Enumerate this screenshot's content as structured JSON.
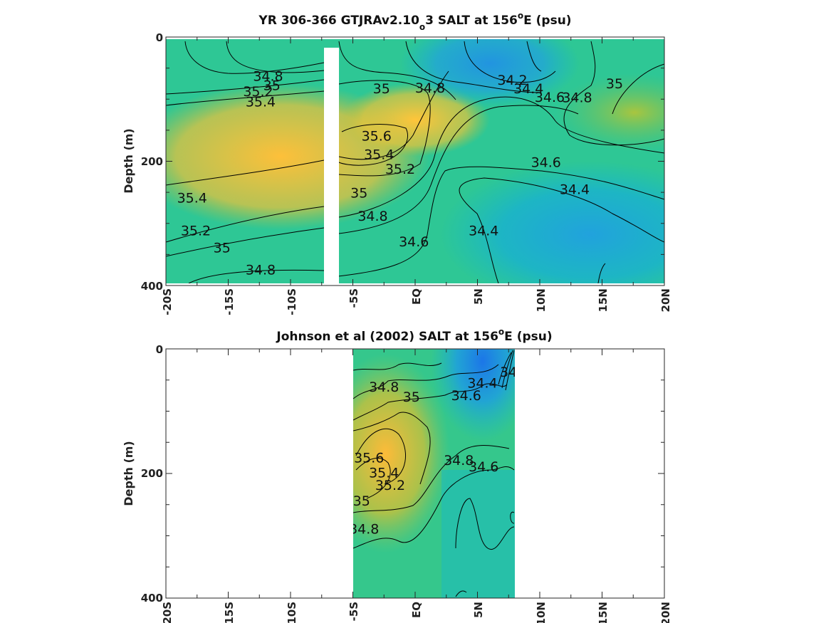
{
  "chart_data": [
    {
      "type": "heatmap",
      "title": "YR 306-366 GTJRAv2.10",
      "title_sub": "o",
      "title_tail": "3 SALT at 156",
      "title_sup": "o",
      "title_end": "E (psu)",
      "ylabel": "Depth (m)",
      "xlabel": "",
      "y_ticks": [
        "0",
        "200",
        "400"
      ],
      "x_ticks": [
        "-20S",
        "-15S",
        "-10S",
        "-5S",
        "EQ",
        "5N",
        "10N",
        "15N",
        "20N"
      ],
      "xlim": [
        -20,
        20
      ],
      "ylim": [
        0,
        400
      ],
      "y_reversed": true,
      "colormap": "parula",
      "clim": [
        34.0,
        35.8
      ],
      "contour_levels": [
        34.2,
        34.4,
        34.6,
        34.8,
        35.0,
        35.2,
        35.4,
        35.6
      ],
      "masked_columns": [
        {
          "x_from": -7.3,
          "x_to": -6.1,
          "depth_from": 12,
          "depth_to": 400
        }
      ],
      "contour_labels": [
        {
          "text": "34.8",
          "lat": -11.8,
          "depth": 62
        },
        {
          "text": "35",
          "lat": -11.5,
          "depth": 77
        },
        {
          "text": "35.2",
          "lat": -12.6,
          "depth": 87
        },
        {
          "text": "35.4",
          "lat": -12.4,
          "depth": 104
        },
        {
          "text": "35",
          "lat": -2.7,
          "depth": 82
        },
        {
          "text": "34.8",
          "lat": 1.2,
          "depth": 81
        },
        {
          "text": "34.2",
          "lat": 7.8,
          "depth": 68
        },
        {
          "text": "34.4",
          "lat": 9.1,
          "depth": 82
        },
        {
          "text": "34.6",
          "lat": 10.8,
          "depth": 96
        },
        {
          "text": "34.8",
          "lat": 13.0,
          "depth": 97
        },
        {
          "text": "35",
          "lat": 16.0,
          "depth": 74
        },
        {
          "text": "35.6",
          "lat": -3.1,
          "depth": 160
        },
        {
          "text": "35.4",
          "lat": -2.9,
          "depth": 190
        },
        {
          "text": "35.2",
          "lat": -1.2,
          "depth": 214
        },
        {
          "text": "35",
          "lat": -4.5,
          "depth": 253
        },
        {
          "text": "34.6",
          "lat": 10.5,
          "depth": 203
        },
        {
          "text": "34.4",
          "lat": 12.8,
          "depth": 247
        },
        {
          "text": "35.4",
          "lat": -17.9,
          "depth": 261
        },
        {
          "text": "35.2",
          "lat": -17.6,
          "depth": 315
        },
        {
          "text": "34.8",
          "lat": -3.4,
          "depth": 291
        },
        {
          "text": "35",
          "lat": -15.5,
          "depth": 343
        },
        {
          "text": "34.4",
          "lat": 5.5,
          "depth": 315
        },
        {
          "text": "34.6",
          "lat": -0.1,
          "depth": 333
        },
        {
          "text": "34.8",
          "lat": -12.4,
          "depth": 379
        }
      ]
    },
    {
      "type": "heatmap",
      "title": "Johnson et al (2002) SALT at 156",
      "title_sup": "o",
      "title_end": "E (psu)",
      "ylabel": "Depth (m)",
      "xlabel": "",
      "y_ticks": [
        "0",
        "200",
        "400"
      ],
      "x_ticks": [
        "-20S",
        "-15S",
        "-10S",
        "-5S",
        "EQ",
        "5N",
        "10N",
        "15N",
        "20N"
      ],
      "xlim": [
        -20,
        20
      ],
      "ylim": [
        0,
        400
      ],
      "y_reversed": true,
      "data_extent_lat": [
        -5,
        8
      ],
      "colormap": "parula",
      "clim": [
        34.0,
        35.8
      ],
      "contour_levels": [
        34.4,
        34.6,
        34.8,
        35.0,
        35.2,
        35.4,
        35.6
      ],
      "contour_labels": [
        {
          "text": "34.8",
          "lat": -2.5,
          "depth": 62
        },
        {
          "text": "35",
          "lat": -0.3,
          "depth": 78
        },
        {
          "text": "34.4",
          "lat": 5.4,
          "depth": 56
        },
        {
          "text": "34.6",
          "lat": 4.1,
          "depth": 76
        },
        {
          "text": "34",
          "lat": 7.5,
          "depth": 38
        },
        {
          "text": "35.6",
          "lat": -3.7,
          "depth": 176
        },
        {
          "text": "35.4",
          "lat": -2.5,
          "depth": 200
        },
        {
          "text": "35.2",
          "lat": -2.0,
          "depth": 220
        },
        {
          "text": "35",
          "lat": -4.3,
          "depth": 245
        },
        {
          "text": "34.8",
          "lat": 3.5,
          "depth": 180
        },
        {
          "text": "34.6",
          "lat": 5.5,
          "depth": 190
        },
        {
          "text": "34.8",
          "lat": -4.1,
          "depth": 290
        }
      ]
    }
  ]
}
